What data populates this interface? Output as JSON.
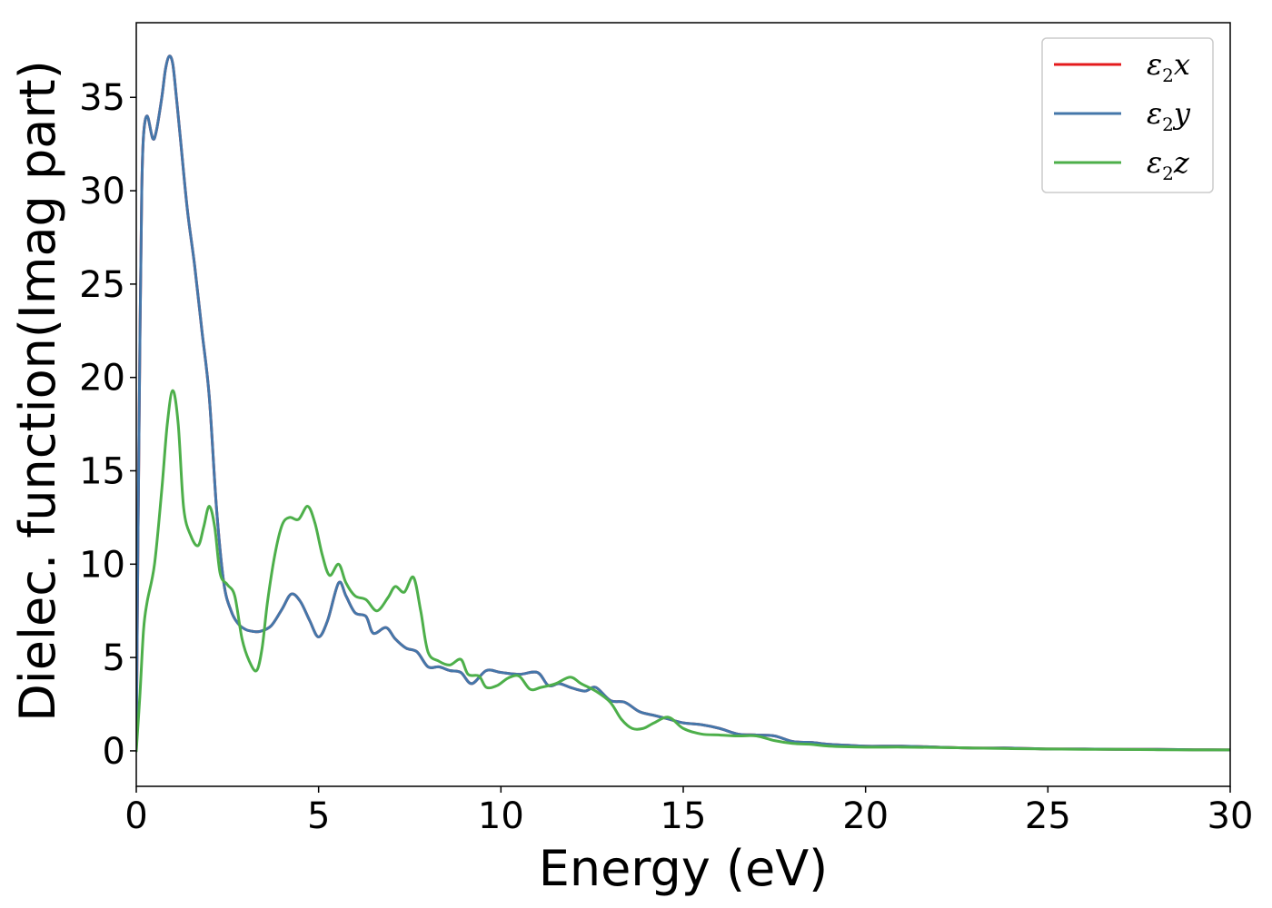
{
  "chart_data": {
    "type": "line",
    "xlabel": "Energy (eV)",
    "ylabel": "Dielec. function(Imag part)",
    "xlim": [
      0,
      30
    ],
    "ylim": [
      -1.9,
      39
    ],
    "xticks": [
      0,
      5,
      10,
      15,
      20,
      25,
      30
    ],
    "yticks": [
      0,
      5,
      10,
      15,
      20,
      25,
      30,
      35
    ],
    "grid": false,
    "legend_position": "top-right",
    "series": [
      {
        "name": "ε2x",
        "legend_main": "ε",
        "legend_sub": "2",
        "legend_var": "x",
        "color": "#e41a1c",
        "x": [
          0,
          0.05,
          0.1,
          0.15,
          0.2,
          0.3,
          0.45,
          0.55,
          0.7,
          0.8,
          0.9,
          1.0,
          1.1,
          1.2,
          1.4,
          1.6,
          1.8,
          2.0,
          2.2,
          2.4,
          2.6,
          2.8,
          3.0,
          3.2,
          3.4,
          3.7,
          4.0,
          4.25,
          4.5,
          4.75,
          5.0,
          5.25,
          5.55,
          5.75,
          6.0,
          6.3,
          6.5,
          6.85,
          7.1,
          7.4,
          7.7,
          8.0,
          8.3,
          8.6,
          8.9,
          9.2,
          9.6,
          10.0,
          10.5,
          11.0,
          11.3,
          11.6,
          11.9,
          12.3,
          12.6,
          13.0,
          13.4,
          13.8,
          14.2,
          14.6,
          15.0,
          15.5,
          16.0,
          16.5,
          17.0,
          17.5,
          18.0,
          18.5,
          19.0,
          19.5,
          20.0,
          21.0,
          22.0,
          23.0,
          24.0,
          25.0,
          26.0,
          27.0,
          28.0,
          29.0,
          30.0
        ],
        "y": [
          0,
          12,
          22,
          30,
          33,
          34,
          32.8,
          33.2,
          35,
          36.5,
          37.2,
          36.8,
          35,
          33,
          29,
          26,
          22.5,
          19,
          13,
          9,
          7.5,
          6.8,
          6.5,
          6.4,
          6.4,
          6.7,
          7.6,
          8.4,
          8.0,
          7.0,
          6.1,
          7.0,
          9.0,
          8.3,
          7.4,
          7.2,
          6.3,
          6.6,
          6.0,
          5.5,
          5.3,
          4.5,
          4.5,
          4.3,
          4.2,
          3.6,
          4.3,
          4.2,
          4.1,
          4.2,
          3.5,
          3.6,
          3.4,
          3.2,
          3.4,
          2.7,
          2.6,
          2.1,
          1.9,
          1.7,
          1.5,
          1.4,
          1.2,
          0.9,
          0.85,
          0.8,
          0.5,
          0.45,
          0.35,
          0.3,
          0.25,
          0.25,
          0.2,
          0.15,
          0.15,
          0.1,
          0.1,
          0.08,
          0.08,
          0.06,
          0.05
        ]
      },
      {
        "name": "ε2y",
        "legend_main": "ε",
        "legend_sub": "2",
        "legend_var": "y",
        "color": "#4477aa",
        "x": [
          0,
          0.05,
          0.1,
          0.15,
          0.2,
          0.3,
          0.45,
          0.55,
          0.7,
          0.8,
          0.9,
          1.0,
          1.1,
          1.2,
          1.4,
          1.6,
          1.8,
          2.0,
          2.2,
          2.4,
          2.6,
          2.8,
          3.0,
          3.2,
          3.4,
          3.7,
          4.0,
          4.25,
          4.5,
          4.75,
          5.0,
          5.25,
          5.55,
          5.75,
          6.0,
          6.3,
          6.5,
          6.85,
          7.1,
          7.4,
          7.7,
          8.0,
          8.3,
          8.6,
          8.9,
          9.2,
          9.6,
          10.0,
          10.5,
          11.0,
          11.3,
          11.6,
          11.9,
          12.3,
          12.6,
          13.0,
          13.4,
          13.8,
          14.2,
          14.6,
          15.0,
          15.5,
          16.0,
          16.5,
          17.0,
          17.5,
          18.0,
          18.5,
          19.0,
          19.5,
          20.0,
          21.0,
          22.0,
          23.0,
          24.0,
          25.0,
          26.0,
          27.0,
          28.0,
          29.0,
          30.0
        ],
        "y": [
          0,
          12,
          22,
          30,
          33,
          34,
          32.8,
          33.2,
          35,
          36.5,
          37.2,
          36.8,
          35,
          33,
          29,
          26,
          22.5,
          19,
          13,
          9,
          7.5,
          6.8,
          6.5,
          6.4,
          6.4,
          6.7,
          7.6,
          8.4,
          8.0,
          7.0,
          6.1,
          7.0,
          9.0,
          8.3,
          7.4,
          7.2,
          6.3,
          6.6,
          6.0,
          5.5,
          5.3,
          4.5,
          4.5,
          4.3,
          4.2,
          3.6,
          4.3,
          4.2,
          4.1,
          4.2,
          3.5,
          3.6,
          3.4,
          3.2,
          3.4,
          2.7,
          2.6,
          2.1,
          1.9,
          1.7,
          1.5,
          1.4,
          1.2,
          0.9,
          0.85,
          0.8,
          0.5,
          0.45,
          0.35,
          0.3,
          0.25,
          0.25,
          0.2,
          0.15,
          0.15,
          0.1,
          0.1,
          0.08,
          0.08,
          0.06,
          0.05
        ]
      },
      {
        "name": "ε2z",
        "legend_main": "ε",
        "legend_sub": "2",
        "legend_var": "z",
        "color": "#4daf4a",
        "x": [
          0,
          0.1,
          0.2,
          0.3,
          0.5,
          0.7,
          0.85,
          1.0,
          1.15,
          1.3,
          1.5,
          1.7,
          1.85,
          2.0,
          2.15,
          2.3,
          2.5,
          2.7,
          2.9,
          3.1,
          3.3,
          3.45,
          3.6,
          3.8,
          4.0,
          4.2,
          4.45,
          4.7,
          4.9,
          5.1,
          5.3,
          5.55,
          5.75,
          6.0,
          6.3,
          6.6,
          6.9,
          7.1,
          7.35,
          7.6,
          7.8,
          8.0,
          8.3,
          8.6,
          8.9,
          9.1,
          9.4,
          9.6,
          9.9,
          10.2,
          10.5,
          10.8,
          11.1,
          11.5,
          11.9,
          12.2,
          12.6,
          13.0,
          13.3,
          13.6,
          13.9,
          14.2,
          14.6,
          15.0,
          15.5,
          16.0,
          16.5,
          17.0,
          17.5,
          18.0,
          18.5,
          19.0,
          20.0,
          21.0,
          22.0,
          23.0,
          24.0,
          25.0,
          26.0,
          27.0,
          28.0,
          29.0,
          30.0
        ],
        "y": [
          0,
          3,
          6.5,
          8,
          10,
          14,
          17.5,
          19.3,
          17.5,
          13,
          11.5,
          11,
          12,
          13.1,
          12,
          9.5,
          8.9,
          8.3,
          6,
          4.8,
          4.3,
          5.5,
          8,
          10.5,
          12.1,
          12.5,
          12.4,
          13.1,
          12.2,
          10.5,
          9.4,
          10.0,
          9.0,
          8.3,
          8.1,
          7.5,
          8.2,
          8.8,
          8.5,
          9.3,
          7.5,
          5.3,
          4.8,
          4.6,
          4.9,
          4.1,
          4.0,
          3.4,
          3.5,
          3.9,
          4.0,
          3.3,
          3.4,
          3.6,
          3.95,
          3.6,
          3.2,
          2.6,
          1.7,
          1.2,
          1.2,
          1.5,
          1.8,
          1.2,
          0.9,
          0.85,
          0.8,
          0.8,
          0.55,
          0.4,
          0.35,
          0.25,
          0.2,
          0.2,
          0.18,
          0.15,
          0.12,
          0.1,
          0.08,
          0.08,
          0.06,
          0.05,
          0.05
        ]
      }
    ]
  }
}
